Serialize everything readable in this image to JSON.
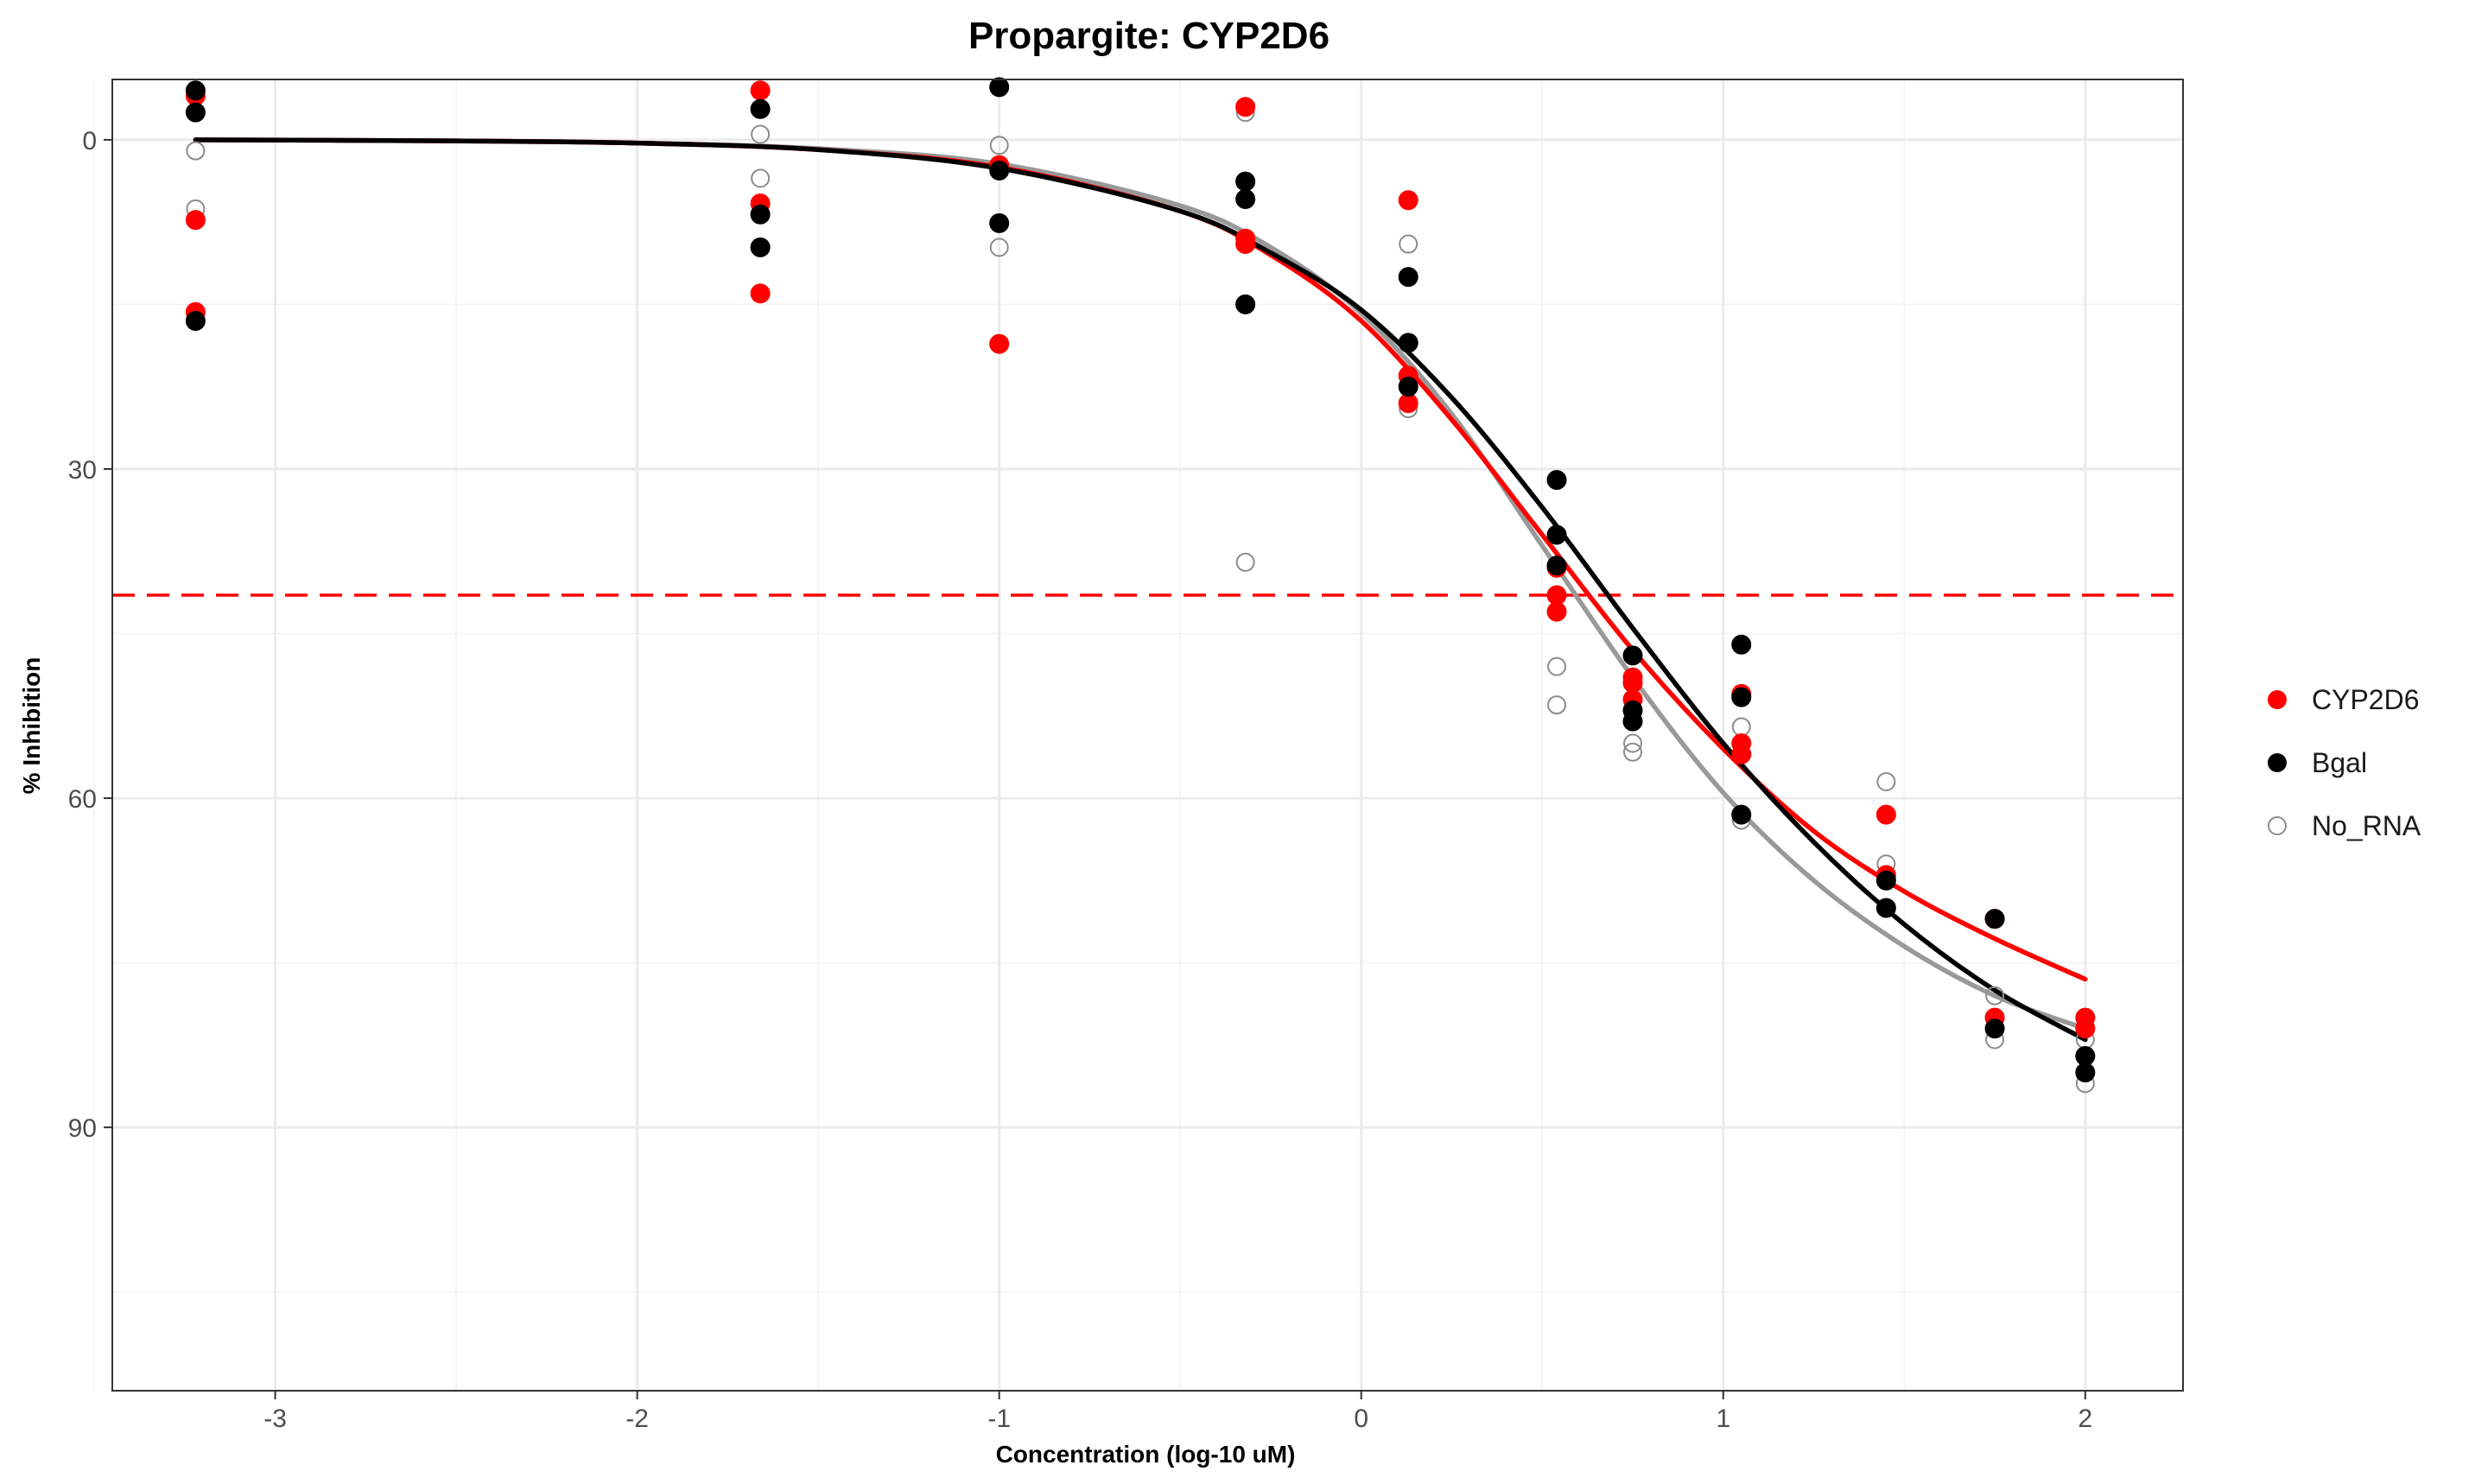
{
  "chart_data": {
    "type": "scatter",
    "title": "Propargite: CYP2D6",
    "xlabel": "Concentration (log-10 uM)",
    "ylabel": "% Inhibition",
    "xlim": [
      -3.45,
      2.27
    ],
    "ylim": [
      -5.5,
      114
    ],
    "y_reversed": true,
    "x_ticks": [
      -3,
      -2,
      -1,
      0,
      1,
      2
    ],
    "x_tick_labels": [
      "-3",
      "-2",
      "-1",
      "0",
      "1",
      "2"
    ],
    "y_ticks": [
      0,
      30,
      60,
      90
    ],
    "y_tick_labels": [
      "0",
      "30",
      "60",
      "90"
    ],
    "grid": true,
    "legend_position": "right",
    "threshold_line": {
      "y": 41.5,
      "color": "#ff0000",
      "style": "dashed"
    },
    "series": [
      {
        "name": "CYP2D6",
        "color": "#ff0000",
        "marker": "filled-circle",
        "points": [
          {
            "x": -3.22,
            "y": -4.0
          },
          {
            "x": -3.22,
            "y": 7.3
          },
          {
            "x": -3.22,
            "y": 15.7
          },
          {
            "x": -1.66,
            "y": -4.5
          },
          {
            "x": -1.66,
            "y": 5.8
          },
          {
            "x": -1.66,
            "y": 14.0
          },
          {
            "x": -1.0,
            "y": 2.3
          },
          {
            "x": -1.0,
            "y": 18.6
          },
          {
            "x": -0.32,
            "y": -3.0
          },
          {
            "x": -0.32,
            "y": 9.0
          },
          {
            "x": -0.32,
            "y": 9.5
          },
          {
            "x": 0.13,
            "y": 5.5
          },
          {
            "x": 0.13,
            "y": 21.5
          },
          {
            "x": 0.13,
            "y": 24.0
          },
          {
            "x": 0.54,
            "y": 39.0
          },
          {
            "x": 0.54,
            "y": 41.5
          },
          {
            "x": 0.54,
            "y": 43.0
          },
          {
            "x": 0.75,
            "y": 49.0
          },
          {
            "x": 0.75,
            "y": 49.5
          },
          {
            "x": 0.75,
            "y": 51.0
          },
          {
            "x": 1.05,
            "y": 50.5
          },
          {
            "x": 1.05,
            "y": 55.0
          },
          {
            "x": 1.05,
            "y": 56.0
          },
          {
            "x": 1.45,
            "y": 61.5
          },
          {
            "x": 1.45,
            "y": 67.0
          },
          {
            "x": 1.75,
            "y": 71.0
          },
          {
            "x": 1.75,
            "y": 80.0
          },
          {
            "x": 2.0,
            "y": 80.0
          },
          {
            "x": 2.0,
            "y": 81.0
          }
        ],
        "fit": {
          "x": [
            -3.22,
            -2.5,
            -2.0,
            -1.5,
            -1.0,
            -0.5,
            -0.25,
            0.0,
            0.25,
            0.5,
            0.75,
            1.0,
            1.25,
            1.5,
            1.75,
            2.0
          ],
          "y": [
            0.0,
            0.1,
            0.3,
            0.9,
            2.5,
            6.5,
            10.5,
            16.5,
            25.5,
            36.0,
            46.5,
            55.5,
            63.0,
            68.5,
            72.8,
            76.5
          ]
        }
      },
      {
        "name": "Bgal",
        "color": "#000000",
        "marker": "filled-circle",
        "points": [
          {
            "x": -3.22,
            "y": -4.5
          },
          {
            "x": -3.22,
            "y": -2.5
          },
          {
            "x": -3.22,
            "y": 16.5
          },
          {
            "x": -1.66,
            "y": -2.8
          },
          {
            "x": -1.66,
            "y": 6.8
          },
          {
            "x": -1.66,
            "y": 9.8
          },
          {
            "x": -1.0,
            "y": -4.8
          },
          {
            "x": -1.0,
            "y": 2.8
          },
          {
            "x": -1.0,
            "y": 7.6
          },
          {
            "x": -0.32,
            "y": 3.8
          },
          {
            "x": -0.32,
            "y": 5.4
          },
          {
            "x": -0.32,
            "y": 15.0
          },
          {
            "x": 0.13,
            "y": 12.5
          },
          {
            "x": 0.13,
            "y": 18.5
          },
          {
            "x": 0.13,
            "y": 22.5
          },
          {
            "x": 0.54,
            "y": 31.0
          },
          {
            "x": 0.54,
            "y": 36.0
          },
          {
            "x": 0.54,
            "y": 38.8
          },
          {
            "x": 0.75,
            "y": 47.0
          },
          {
            "x": 0.75,
            "y": 52.0
          },
          {
            "x": 0.75,
            "y": 53.0
          },
          {
            "x": 1.05,
            "y": 46.0
          },
          {
            "x": 1.05,
            "y": 50.8
          },
          {
            "x": 1.05,
            "y": 61.5
          },
          {
            "x": 1.45,
            "y": 67.5
          },
          {
            "x": 1.45,
            "y": 70.0
          },
          {
            "x": 1.75,
            "y": 71.0
          },
          {
            "x": 1.75,
            "y": 81.0
          },
          {
            "x": 2.0,
            "y": 83.5
          },
          {
            "x": 2.0,
            "y": 85.0
          }
        ],
        "fit": {
          "x": [
            -3.22,
            -2.5,
            -2.0,
            -1.5,
            -1.0,
            -0.5,
            -0.25,
            0.0,
            0.25,
            0.5,
            0.75,
            1.0,
            1.25,
            1.5,
            1.75,
            2.0
          ],
          "y": [
            0.0,
            0.1,
            0.3,
            0.9,
            2.6,
            6.5,
            10.3,
            15.5,
            23.5,
            33.5,
            44.5,
            55.0,
            64.0,
            71.5,
            77.5,
            82.0
          ]
        }
      },
      {
        "name": "No_RNA",
        "color": "#8c8c8c",
        "marker": "open-circle",
        "points": [
          {
            "x": -3.22,
            "y": 1.0
          },
          {
            "x": -3.22,
            "y": 6.3
          },
          {
            "x": -1.66,
            "y": -0.5
          },
          {
            "x": -1.66,
            "y": 3.5
          },
          {
            "x": -1.0,
            "y": 0.5
          },
          {
            "x": -1.0,
            "y": 9.8
          },
          {
            "x": -0.32,
            "y": -2.5
          },
          {
            "x": -0.32,
            "y": 38.5
          },
          {
            "x": 0.13,
            "y": 9.5
          },
          {
            "x": 0.13,
            "y": 24.5
          },
          {
            "x": 0.54,
            "y": 48.0
          },
          {
            "x": 0.54,
            "y": 51.5
          },
          {
            "x": 0.75,
            "y": 55.0
          },
          {
            "x": 0.75,
            "y": 55.8
          },
          {
            "x": 1.05,
            "y": 53.5
          },
          {
            "x": 1.05,
            "y": 62.0
          },
          {
            "x": 1.45,
            "y": 58.5
          },
          {
            "x": 1.45,
            "y": 66.0
          },
          {
            "x": 1.75,
            "y": 78.0
          },
          {
            "x": 1.75,
            "y": 82.0
          },
          {
            "x": 2.0,
            "y": 82.0
          },
          {
            "x": 2.0,
            "y": 86.0
          }
        ],
        "fit": {
          "x": [
            -3.22,
            -2.5,
            -2.0,
            -1.5,
            -1.0,
            -0.5,
            -0.25,
            0.0,
            0.25,
            0.5,
            0.75,
            1.0,
            1.25,
            1.5,
            1.75,
            2.0
          ],
          "y": [
            0.0,
            0.1,
            0.3,
            0.8,
            2.2,
            6.0,
            9.8,
            15.8,
            25.0,
            37.0,
            49.0,
            59.5,
            67.5,
            73.5,
            78.0,
            81.0
          ]
        }
      }
    ]
  }
}
